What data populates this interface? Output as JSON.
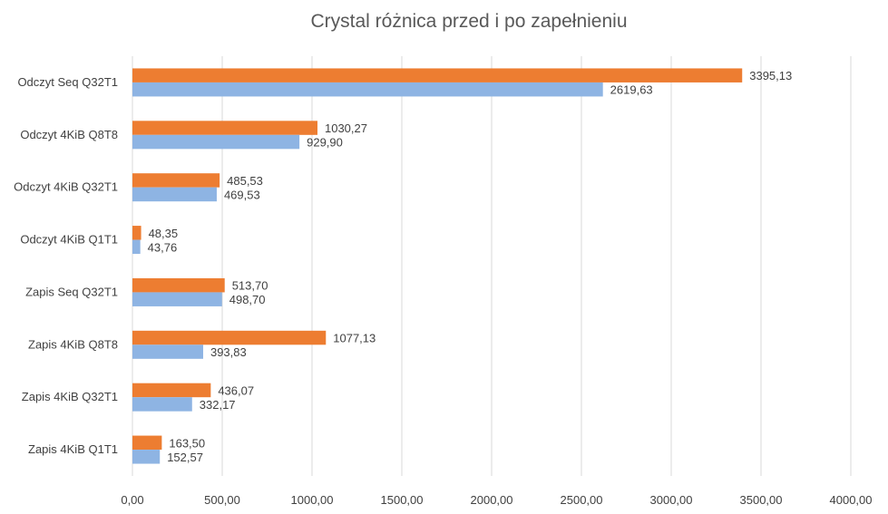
{
  "chart_data": {
    "type": "bar",
    "orientation": "horizontal",
    "title": "Crystal różnica przed i po zapełnieniu",
    "xlabel": "",
    "ylabel": "",
    "categories": [
      "Odczyt Seq Q32T1",
      "Odczyt 4KiB Q8T8",
      "Odczyt 4KiB Q32T1",
      "Odczyt 4KiB Q1T1",
      "Zapis Seq Q32T1",
      "Zapis 4KiB Q8T8",
      "Zapis 4KiB Q32T1",
      "Zapis 4KiB Q1T1"
    ],
    "series": [
      {
        "color": "#ed7d31",
        "values": [
          3395.13,
          1030.27,
          485.53,
          48.35,
          513.7,
          1077.13,
          436.07,
          163.5
        ],
        "labels": [
          "3395,13",
          "1030,27",
          "485,53",
          "48,35",
          "513,70",
          "1077,13",
          "436,07",
          "163,50"
        ]
      },
      {
        "color": "#8eb4e3",
        "values": [
          2619.63,
          929.9,
          469.53,
          43.76,
          498.7,
          393.83,
          332.17,
          152.57
        ],
        "labels": [
          "2619,63",
          "929,90",
          "469,53",
          "43,76",
          "498,70",
          "393,83",
          "332,17",
          "152,57"
        ]
      }
    ],
    "xlim": [
      0,
      4000
    ],
    "x_ticks": [
      0,
      500,
      1000,
      1500,
      2000,
      2500,
      3000,
      3500,
      4000
    ],
    "x_tick_labels": [
      "0,00",
      "500,00",
      "1000,00",
      "1500,00",
      "2000,00",
      "2500,00",
      "3000,00",
      "3500,00",
      "4000,00"
    ],
    "grid": "vertical",
    "legend": "none"
  }
}
